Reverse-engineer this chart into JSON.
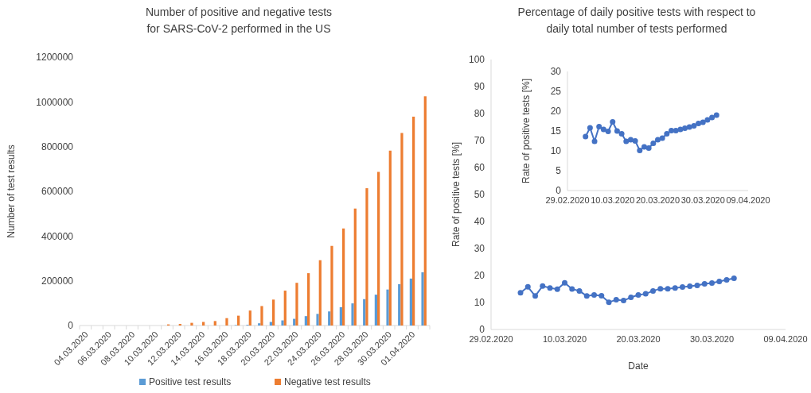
{
  "chart_data": [
    {
      "type": "bar",
      "title": "Number of positive and negative tests\nfor SARS-CoV-2 performed in the US",
      "ylabel": "Number of test results",
      "categories": [
        "04.03.2020",
        null,
        "06.03.2020",
        null,
        "08.03.2020",
        null,
        "10.03.2020",
        null,
        "12.03.2020",
        null,
        "14.03.2020",
        null,
        "16.03.2020",
        null,
        "18.03.2020",
        null,
        "20.03.2020",
        null,
        "22.03.2020",
        null,
        "24.03.2020",
        null,
        "26.03.2020",
        null,
        "28.03.2020",
        null,
        "30.03.2020",
        null,
        "01.04.2020",
        null
      ],
      "series": [
        {
          "name": "Positive test results",
          "color": "#5b9bd5",
          "values": [
            0,
            0,
            0,
            0,
            0,
            0,
            0,
            0,
            0,
            0,
            0,
            0,
            0,
            2000,
            3000,
            10000,
            16000,
            23000,
            30000,
            42000,
            52000,
            63000,
            82000,
            99000,
            118000,
            138000,
            161000,
            185000,
            210000,
            238000
          ]
        },
        {
          "name": "Negative test results",
          "color": "#ed7d31",
          "values": [
            0,
            0,
            0,
            0,
            0,
            0,
            0,
            5000,
            7000,
            12000,
            16000,
            20000,
            33000,
            44000,
            67000,
            87000,
            116000,
            156000,
            191000,
            234000,
            292000,
            356000,
            434000,
            523000,
            614000,
            687000,
            782000,
            861000,
            934000,
            1025000
          ]
        }
      ],
      "ylim": [
        0,
        1200000
      ],
      "yticks": [
        0,
        200000,
        400000,
        600000,
        800000,
        1000000,
        1200000
      ],
      "legend": "bottom"
    },
    {
      "type": "line",
      "title": "Percentage of daily positive tests with respect to\ndaily total number of tests performed",
      "xlabel": "Date",
      "ylabel": "Rate of positive tests [%]",
      "marker": "circle",
      "line_style": "solid",
      "x": [
        "2020-03-04",
        "2020-03-05",
        "2020-03-06",
        "2020-03-07",
        "2020-03-08",
        "2020-03-09",
        "2020-03-10",
        "2020-03-11",
        "2020-03-12",
        "2020-03-13",
        "2020-03-14",
        "2020-03-15",
        "2020-03-16",
        "2020-03-17",
        "2020-03-18",
        "2020-03-19",
        "2020-03-20",
        "2020-03-21",
        "2020-03-22",
        "2020-03-23",
        "2020-03-24",
        "2020-03-25",
        "2020-03-26",
        "2020-03-27",
        "2020-03-28",
        "2020-03-29",
        "2020-03-30",
        "2020-03-31",
        "2020-04-01",
        "2020-04-02"
      ],
      "series": [
        {
          "color": "#4472c4",
          "values": [
            13.6,
            15.8,
            12.4,
            16.1,
            15.4,
            14.9,
            17.3,
            15.0,
            14.3,
            12.4,
            12.8,
            12.5,
            10.1,
            11.0,
            10.7,
            11.9,
            12.8,
            13.2,
            14.3,
            15.1,
            15.1,
            15.4,
            15.7,
            16.0,
            16.3,
            16.9,
            17.2,
            17.8,
            18.4,
            19.0
          ]
        }
      ],
      "xlim": [
        "2020-02-29",
        "2020-04-09"
      ],
      "xticks": [
        {
          "value": "2020-02-29",
          "label": "29.02.2020"
        },
        {
          "value": "2020-03-10",
          "label": "10.03.2020"
        },
        {
          "value": "2020-03-20",
          "label": "20.03.2020"
        },
        {
          "value": "2020-03-30",
          "label": "30.03.2020"
        },
        {
          "value": "2020-04-09",
          "label": "09.04.2020"
        }
      ],
      "ylim": [
        0,
        100
      ],
      "yticks": [
        0,
        10,
        20,
        30,
        40,
        50,
        60,
        70,
        80,
        90,
        100
      ]
    },
    {
      "type": "line",
      "ylabel": "Rate of positive tests [%]",
      "marker": "circle",
      "line_style": "solid",
      "x": [
        "2020-03-04",
        "2020-03-05",
        "2020-03-06",
        "2020-03-07",
        "2020-03-08",
        "2020-03-09",
        "2020-03-10",
        "2020-03-11",
        "2020-03-12",
        "2020-03-13",
        "2020-03-14",
        "2020-03-15",
        "2020-03-16",
        "2020-03-17",
        "2020-03-18",
        "2020-03-19",
        "2020-03-20",
        "2020-03-21",
        "2020-03-22",
        "2020-03-23",
        "2020-03-24",
        "2020-03-25",
        "2020-03-26",
        "2020-03-27",
        "2020-03-28",
        "2020-03-29",
        "2020-03-30",
        "2020-03-31",
        "2020-04-01",
        "2020-04-02"
      ],
      "series": [
        {
          "color": "#4472c4",
          "values": [
            13.6,
            15.8,
            12.4,
            16.1,
            15.4,
            14.9,
            17.3,
            15.0,
            14.3,
            12.4,
            12.8,
            12.5,
            10.1,
            11.0,
            10.7,
            11.9,
            12.8,
            13.2,
            14.3,
            15.1,
            15.1,
            15.4,
            15.7,
            16.0,
            16.3,
            16.9,
            17.2,
            17.8,
            18.4,
            19.0
          ]
        }
      ],
      "xlim": [
        "2020-02-29",
        "2020-04-09"
      ],
      "xticks": [
        {
          "value": "2020-02-29",
          "label": "29.02.2020"
        },
        {
          "value": "2020-03-10",
          "label": "10.03.2020"
        },
        {
          "value": "2020-03-20",
          "label": "20.03.2020"
        },
        {
          "value": "2020-03-30",
          "label": "30.03.2020"
        },
        {
          "value": "2020-04-09",
          "label": "09.04.2020"
        }
      ],
      "ylim": [
        0,
        30
      ],
      "yticks": [
        0,
        5,
        10,
        15,
        20,
        25,
        30
      ]
    }
  ]
}
